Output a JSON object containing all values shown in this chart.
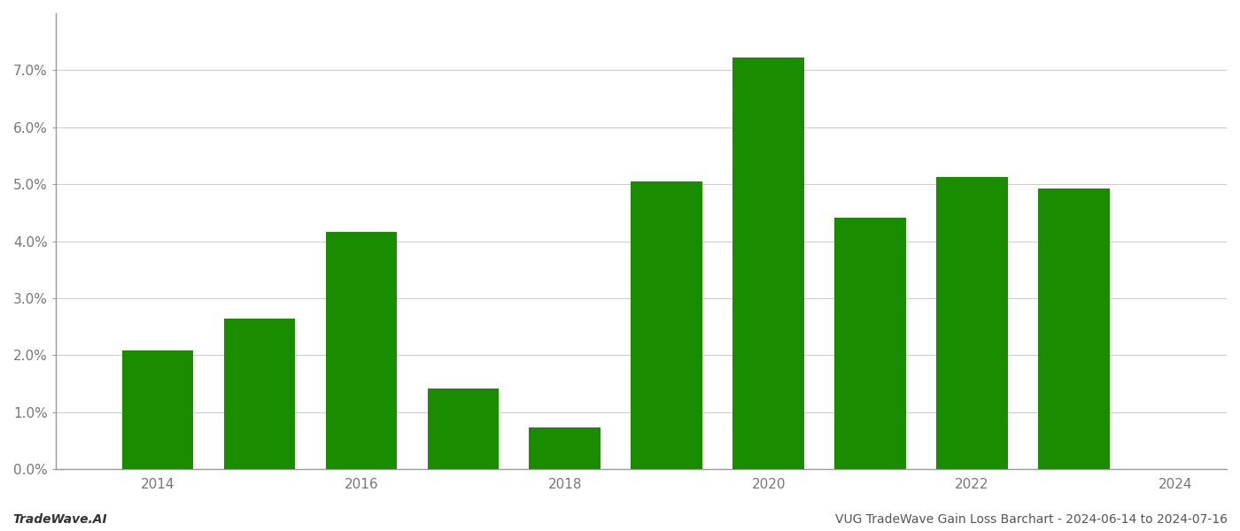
{
  "years": [
    2014,
    2015,
    2016,
    2017,
    2018,
    2019,
    2020,
    2021,
    2022,
    2023
  ],
  "values": [
    0.0208,
    0.0265,
    0.0417,
    0.0142,
    0.0073,
    0.0505,
    0.0722,
    0.0442,
    0.0513,
    0.0493
  ],
  "bar_color": "#1a8c00",
  "background_color": "#ffffff",
  "ylim": [
    0,
    0.08
  ],
  "yticks": [
    0.0,
    0.01,
    0.02,
    0.03,
    0.04,
    0.05,
    0.06,
    0.07
  ],
  "xlim": [
    2013.0,
    2024.5
  ],
  "xticks": [
    2014,
    2016,
    2018,
    2020,
    2022,
    2024
  ],
  "grid_color": "#cccccc",
  "footer_left": "TradeWave.AI",
  "footer_right": "VUG TradeWave Gain Loss Barchart - 2024-06-14 to 2024-07-16",
  "footer_fontsize": 10,
  "tick_fontsize": 11,
  "bar_width": 0.7
}
